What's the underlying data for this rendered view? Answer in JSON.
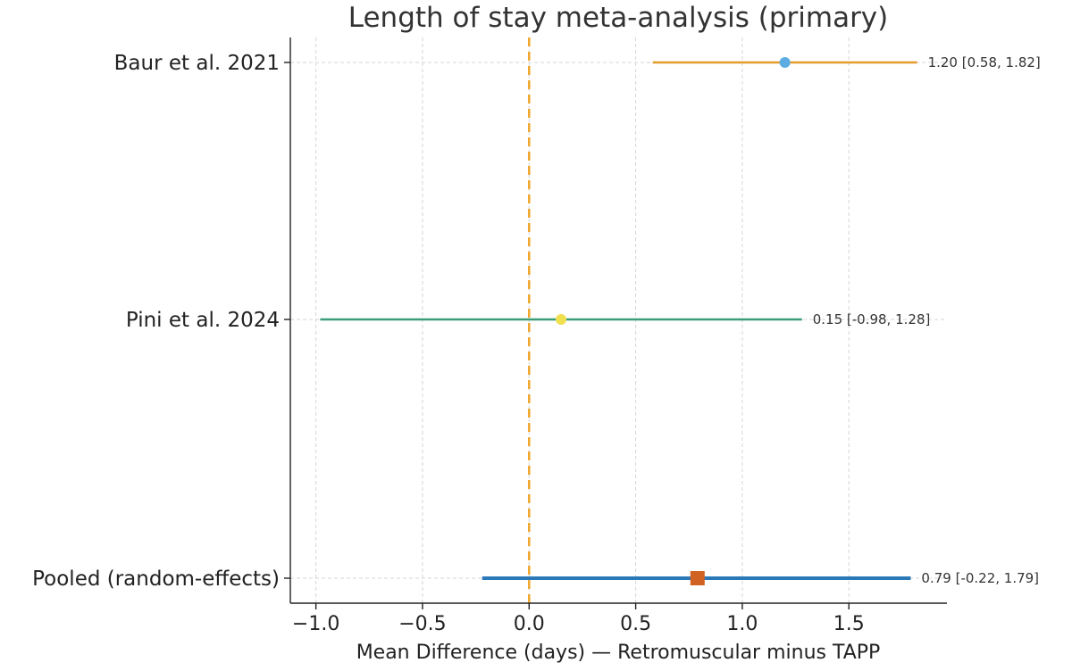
{
  "chart_data": {
    "type": "forest",
    "title": "Length of stay meta-analysis (primary)",
    "xlabel": "Mean Difference (days) — Retromuscular minus TAPP",
    "ylabel": "",
    "xlim": [
      -1.12,
      1.96
    ],
    "xticks": [
      -1.0,
      -0.5,
      0.0,
      0.5,
      1.0,
      1.5
    ],
    "xtick_labels": [
      "−1.0",
      "−0.5",
      "0.0",
      "0.5",
      "1.0",
      "1.5"
    ],
    "grid": true,
    "reference_line": {
      "x": 0.0,
      "style": "dashed",
      "color": "#f0a830"
    },
    "rows": [
      {
        "label": "Baur et al. 2021",
        "estimate": 1.2,
        "lower": 0.58,
        "upper": 1.82,
        "annotation": "1.20 [0.58, 1.82]",
        "line_color": "#e59a2c",
        "marker_color": "#5dade2",
        "marker": "circle"
      },
      {
        "label": "Pini et al. 2024",
        "estimate": 0.15,
        "lower": -0.98,
        "upper": 1.28,
        "annotation": "0.15 [-0.98, 1.28]",
        "line_color": "#3a9d78",
        "marker_color": "#f0e050",
        "marker": "circle"
      },
      {
        "label": "Pooled (random-effects)",
        "estimate": 0.79,
        "lower": -0.22,
        "upper": 1.79,
        "annotation": "0.79 [-0.22, 1.79]",
        "line_color": "#2a78b8",
        "marker_color": "#d06224",
        "marker": "square"
      }
    ]
  }
}
